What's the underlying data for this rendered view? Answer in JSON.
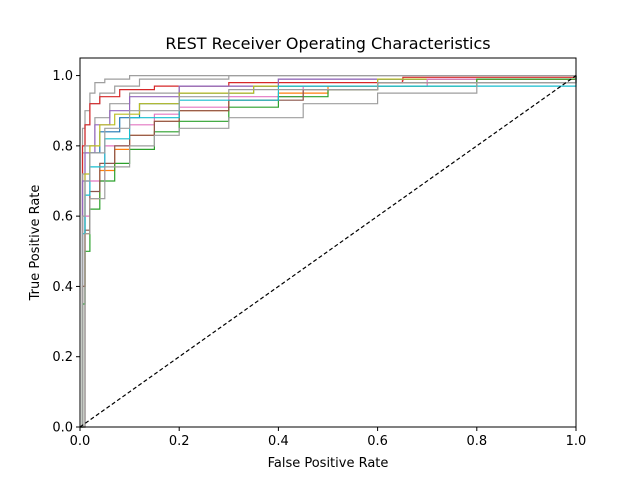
{
  "chart_data": {
    "type": "line",
    "title": "REST Receiver Operating Characteristics",
    "xlabel": "False Positive Rate",
    "ylabel": "True Positive Rate",
    "xlim": [
      0.0,
      1.0
    ],
    "ylim": [
      0.0,
      1.05
    ],
    "xticks": [
      "0.0",
      "0.2",
      "0.4",
      "0.6",
      "0.8",
      "1.0"
    ],
    "yticks": [
      "0.0",
      "0.2",
      "0.4",
      "0.6",
      "0.8",
      "1.0"
    ],
    "grid": false,
    "legend": "none",
    "reference_line": {
      "style": "dashed",
      "color": "#000000",
      "x": [
        0.0,
        1.0
      ],
      "y": [
        0.0,
        1.0
      ]
    },
    "series": [
      {
        "color": "#9e9e9e",
        "x": [
          0.0,
          0.005,
          0.01,
          0.02,
          0.03,
          0.05,
          0.1,
          0.2,
          1.0
        ],
        "y": [
          0.0,
          0.85,
          0.9,
          0.95,
          0.98,
          0.99,
          1.0,
          1.0,
          1.0
        ]
      },
      {
        "color": "#9e9e9e",
        "x": [
          0.0,
          0.005,
          0.01,
          0.02,
          0.04,
          0.07,
          0.12,
          0.3,
          1.0
        ],
        "y": [
          0.0,
          0.78,
          0.86,
          0.92,
          0.95,
          0.97,
          0.99,
          1.0,
          1.0
        ]
      },
      {
        "color": "#d62728",
        "x": [
          0.0,
          0.005,
          0.01,
          0.02,
          0.04,
          0.08,
          0.15,
          0.3,
          0.65,
          0.651,
          1.0
        ],
        "y": [
          0.0,
          0.8,
          0.86,
          0.92,
          0.94,
          0.96,
          0.97,
          0.98,
          0.985,
          0.995,
          1.0
        ]
      },
      {
        "color": "#9e9e9e",
        "x": [
          0.0,
          0.005,
          0.01,
          0.03,
          0.06,
          0.1,
          0.2,
          0.4,
          1.0
        ],
        "y": [
          0.0,
          0.72,
          0.8,
          0.88,
          0.92,
          0.95,
          0.97,
          0.99,
          1.0
        ]
      },
      {
        "color": "#9467bd",
        "x": [
          0.0,
          0.005,
          0.01,
          0.03,
          0.06,
          0.1,
          0.2,
          0.4,
          1.0
        ],
        "y": [
          0.0,
          0.7,
          0.78,
          0.86,
          0.9,
          0.94,
          0.97,
          0.99,
          1.0
        ]
      },
      {
        "color": "#1f77b4",
        "x": [
          0.0,
          0.01,
          0.02,
          0.04,
          0.08,
          0.12,
          0.2,
          0.35,
          0.6,
          1.0
        ],
        "y": [
          0.0,
          0.7,
          0.78,
          0.84,
          0.88,
          0.92,
          0.95,
          0.97,
          0.99,
          1.0
        ]
      },
      {
        "color": "#bcbd22",
        "x": [
          0.0,
          0.01,
          0.02,
          0.04,
          0.07,
          0.12,
          0.2,
          0.35,
          0.6,
          1.0
        ],
        "y": [
          0.0,
          0.72,
          0.8,
          0.86,
          0.89,
          0.92,
          0.95,
          0.97,
          0.99,
          1.0
        ]
      },
      {
        "color": "#e377c2",
        "x": [
          0.0,
          0.01,
          0.02,
          0.05,
          0.1,
          0.15,
          0.2,
          0.3,
          0.45,
          0.7,
          1.0
        ],
        "y": [
          0.0,
          0.6,
          0.7,
          0.8,
          0.86,
          0.89,
          0.91,
          0.94,
          0.97,
          0.99,
          1.0
        ]
      },
      {
        "color": "#ff7f0e",
        "x": [
          0.0,
          0.005,
          0.01,
          0.02,
          0.04,
          0.07,
          0.1,
          0.15,
          0.2,
          0.3,
          0.4,
          0.5,
          0.6,
          0.8,
          1.0
        ],
        "y": [
          0.0,
          0.4,
          0.55,
          0.65,
          0.73,
          0.79,
          0.83,
          0.87,
          0.9,
          0.93,
          0.95,
          0.97,
          0.98,
          0.99,
          1.0
        ]
      },
      {
        "color": "#2ca02c",
        "x": [
          0.0,
          0.005,
          0.01,
          0.02,
          0.04,
          0.07,
          0.1,
          0.15,
          0.2,
          0.3,
          0.4,
          0.5,
          0.6,
          0.8,
          1.0
        ],
        "y": [
          0.0,
          0.35,
          0.5,
          0.62,
          0.7,
          0.75,
          0.79,
          0.84,
          0.87,
          0.91,
          0.94,
          0.96,
          0.97,
          0.99,
          1.0
        ]
      },
      {
        "color": "#8c564b",
        "x": [
          0.0,
          0.005,
          0.01,
          0.02,
          0.04,
          0.07,
          0.1,
          0.15,
          0.2,
          0.3,
          0.45,
          0.6,
          1.0
        ],
        "y": [
          0.0,
          0.4,
          0.56,
          0.67,
          0.75,
          0.8,
          0.83,
          0.87,
          0.9,
          0.93,
          0.96,
          0.98,
          1.0
        ]
      },
      {
        "color": "#17becf",
        "x": [
          0.0,
          0.005,
          0.01,
          0.02,
          0.05,
          0.1,
          0.2,
          0.4,
          1.0
        ],
        "y": [
          0.0,
          0.55,
          0.66,
          0.74,
          0.82,
          0.88,
          0.93,
          0.97,
          1.0
        ]
      },
      {
        "color": "#9e9e9e",
        "x": [
          0.0,
          0.01,
          0.02,
          0.05,
          0.1,
          0.15,
          0.2,
          0.3,
          0.45,
          0.6,
          0.8,
          1.0
        ],
        "y": [
          0.0,
          0.55,
          0.65,
          0.74,
          0.8,
          0.83,
          0.85,
          0.88,
          0.92,
          0.95,
          0.98,
          1.0
        ]
      },
      {
        "color": "#9e9e9e",
        "x": [
          0.0,
          0.005,
          0.01,
          0.02,
          0.05,
          0.1,
          0.2,
          0.3,
          0.6,
          1.0
        ],
        "y": [
          0.0,
          0.6,
          0.7,
          0.78,
          0.85,
          0.9,
          0.94,
          0.96,
          0.98,
          1.0
        ]
      }
    ]
  }
}
